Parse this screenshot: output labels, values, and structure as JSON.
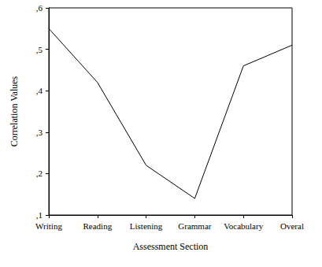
{
  "chart_data": {
    "type": "line",
    "categories": [
      "Writing",
      "Reading",
      "Listening",
      "Grammar",
      "Vocabulary",
      "Overal"
    ],
    "values": [
      0.55,
      0.42,
      0.22,
      0.14,
      0.46,
      0.51
    ],
    "color": "#000000",
    "x_label": "Assessment Section",
    "y_label": "Correlation Values",
    "ylim": [
      0.1,
      0.6
    ],
    "yticks": [
      {
        "value": 0.1,
        "label": ",1"
      },
      {
        "value": 0.2,
        "label": ",2"
      },
      {
        "value": 0.3,
        "label": ",3"
      },
      {
        "value": 0.4,
        "label": ",4"
      },
      {
        "value": 0.5,
        "label": ",5"
      },
      {
        "value": 0.6,
        "label": ",6"
      }
    ],
    "grid": false
  }
}
